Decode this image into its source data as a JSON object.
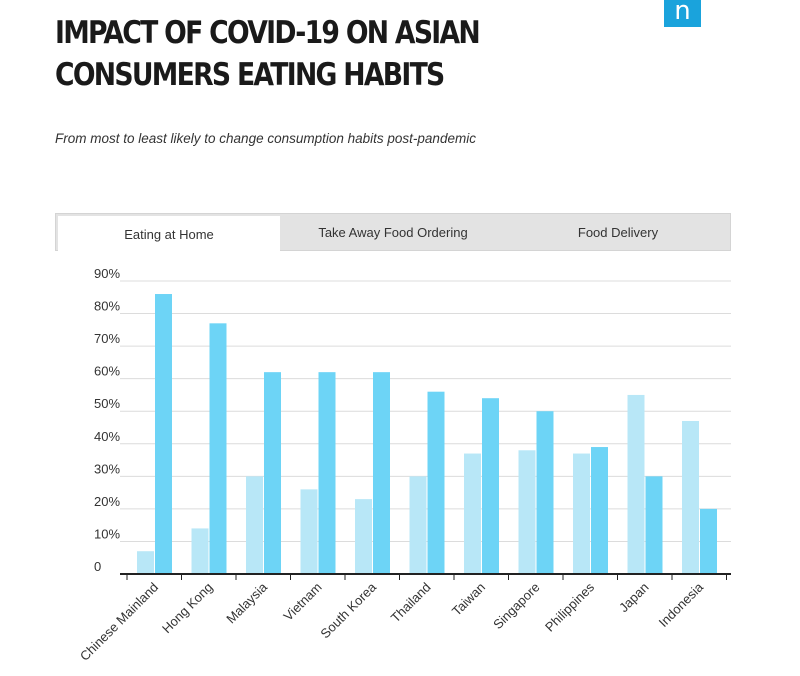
{
  "header": {
    "title": "IMPACT OF COVID-19 ON ASIAN CONSUMERS EATING HABITS",
    "subtitle": "From most to least likely to change consumption habits post-pandemic",
    "logo_letter": "n"
  },
  "tabs": [
    {
      "label": "Eating at Home",
      "active": true
    },
    {
      "label": "Take Away Food Ordering",
      "active": false
    },
    {
      "label": "Food Delivery",
      "active": false
    }
  ],
  "colors": {
    "series_a": "#b8e7f7",
    "series_b": "#6dd4f6",
    "logo": "#1aa3dc"
  },
  "chart_data": {
    "type": "bar",
    "categories": [
      "Chinese Mainland",
      "Hong Kong",
      "Malaysia",
      "Vietnam",
      "South Korea",
      "Thailand",
      "Taiwan",
      "Singapore",
      "Philippines",
      "Japan",
      "Indonesia"
    ],
    "series": [
      {
        "values": [
          7,
          14,
          30,
          26,
          23,
          30,
          37,
          38,
          37,
          55,
          47
        ]
      },
      {
        "values": [
          86,
          77,
          62,
          62,
          62,
          56,
          54,
          50,
          39,
          30,
          20
        ]
      }
    ],
    "yticks": [
      "0",
      "10%",
      "20%",
      "30%",
      "40%",
      "50%",
      "60%",
      "70%",
      "80%",
      "90%"
    ],
    "ylim": [
      0,
      90
    ],
    "grid": true
  }
}
